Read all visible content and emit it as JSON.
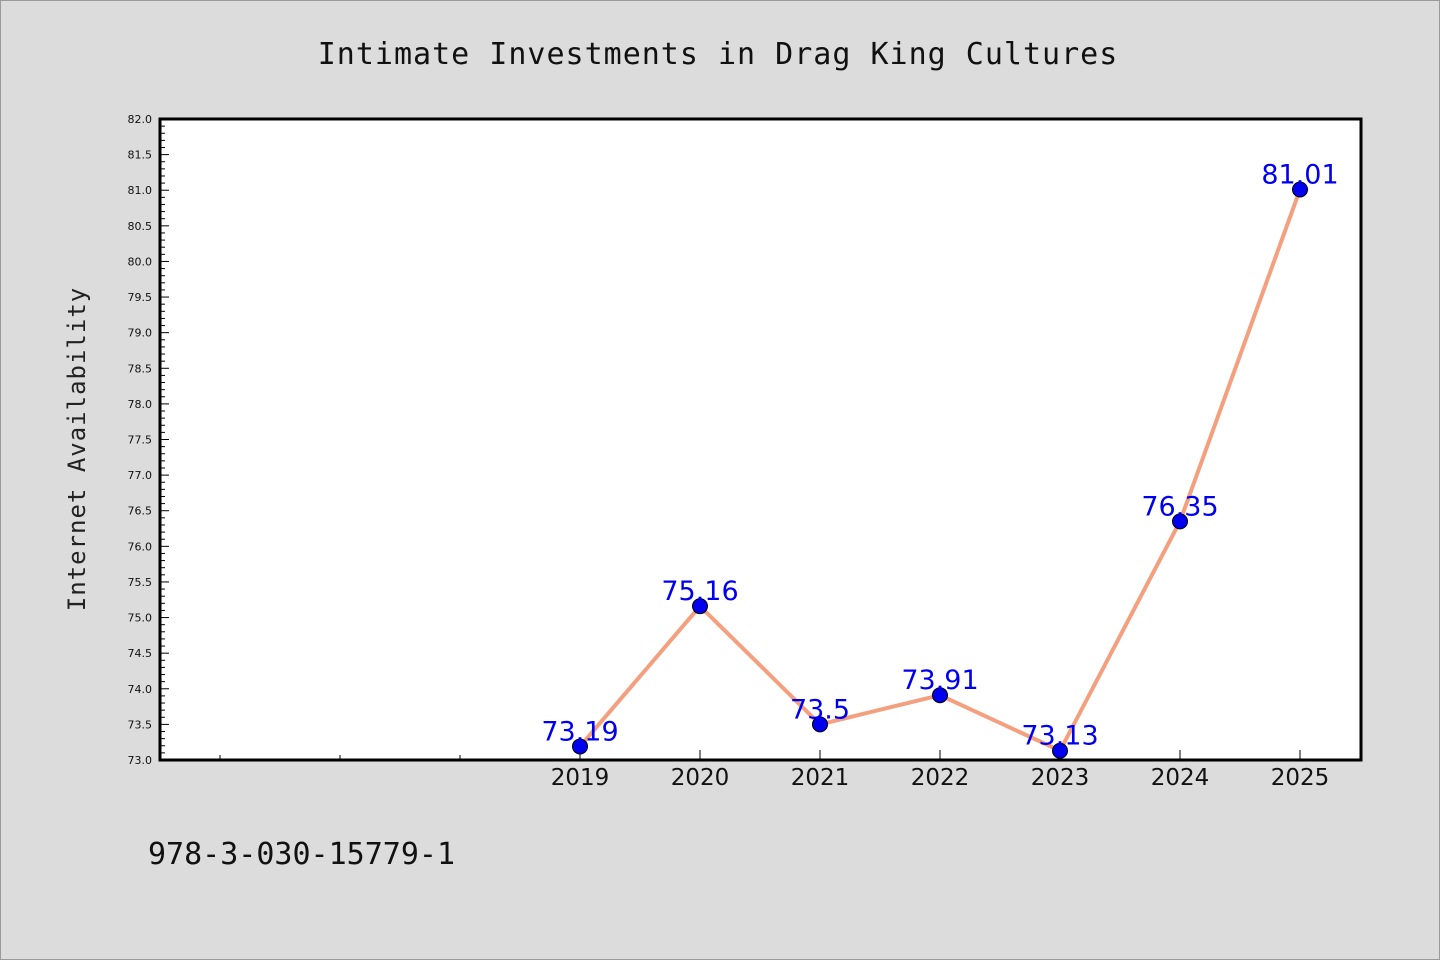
{
  "chart_data": {
    "type": "line",
    "title": "Intimate Investments in Drag King Cultures",
    "xlabel": "",
    "ylabel": "Internet Availability",
    "categories": [
      "2019",
      "2020",
      "2021",
      "2022",
      "2023",
      "2024",
      "2025"
    ],
    "values": [
      73.19,
      75.16,
      73.5,
      73.91,
      73.13,
      76.35,
      81.01
    ],
    "data_labels": [
      "73.19",
      "75.16",
      "73.5",
      "73.91",
      "73.13",
      "76.35",
      "81.01"
    ],
    "ylim": [
      73.0,
      82.0
    ],
    "yticks": [
      "73.0",
      "73.5",
      "74.0",
      "74.5",
      "75.0",
      "75.5",
      "76.0",
      "76.5",
      "77.0",
      "77.5",
      "78.0",
      "78.5",
      "79.0",
      "79.5",
      "80.0",
      "80.5",
      "81.0",
      "81.5",
      "82.0"
    ],
    "grid": false,
    "legend": "none",
    "line_color": "#f4a07e",
    "marker_color": "#0000ee",
    "label_color": "#0000ee"
  },
  "footer": {
    "isbn": "978-3-030-15779-1"
  }
}
